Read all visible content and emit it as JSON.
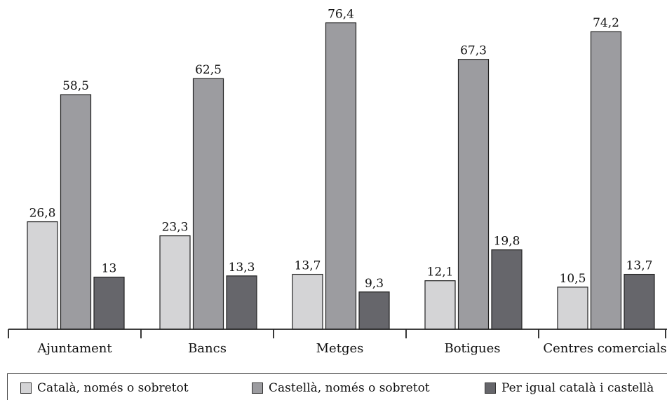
{
  "chart_data": {
    "type": "bar",
    "categories": [
      "Ajuntament",
      "Bancs",
      "Metges",
      "Botigues",
      "Centres comercials"
    ],
    "series": [
      {
        "name": "Català, només o sobretot",
        "values": [
          26.8,
          23.3,
          13.7,
          12.1,
          10.5
        ],
        "labels": [
          "26,8",
          "23,3",
          "13,7",
          "12,1",
          "10,5"
        ],
        "color": "#d4d4d6"
      },
      {
        "name": "Castellà, només o sobretot",
        "values": [
          58.5,
          62.5,
          76.4,
          67.3,
          74.2
        ],
        "labels": [
          "58,5",
          "62,5",
          "76,4",
          "67,3",
          "74,2"
        ],
        "color": "#9c9ca0"
      },
      {
        "name": "Per igual català i castellà",
        "values": [
          13,
          13.3,
          9.3,
          19.8,
          13.7
        ],
        "labels": [
          "13",
          "13,3",
          "9,3",
          "19,8",
          "13,7"
        ],
        "color": "#66666b"
      }
    ],
    "ylim": [
      0,
      80
    ],
    "grid": false,
    "legend_position": "bottom"
  }
}
